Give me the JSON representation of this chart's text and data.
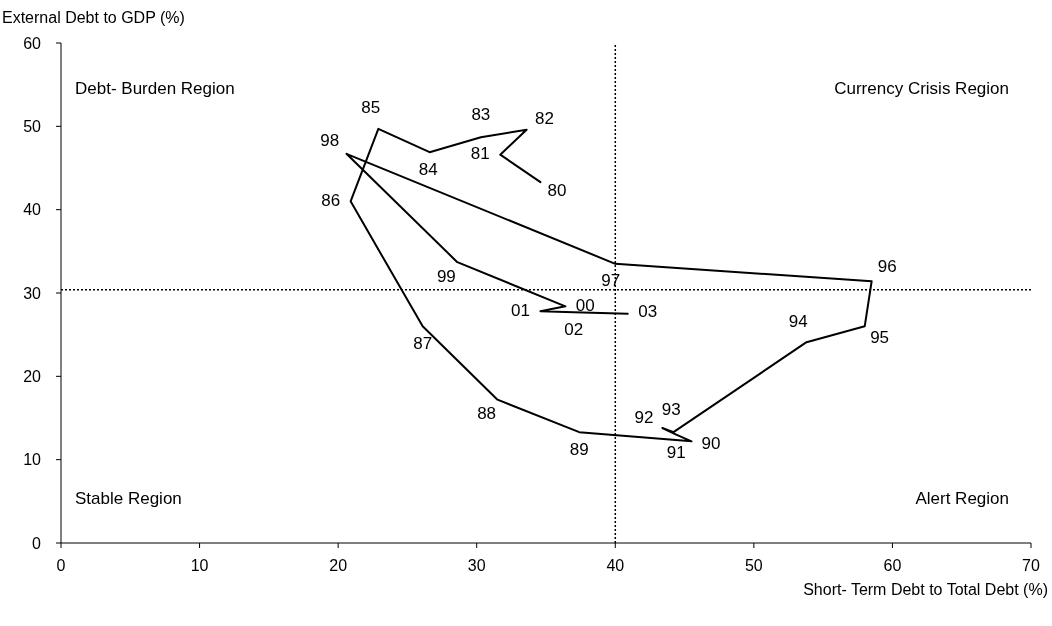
{
  "chart_data": {
    "type": "line",
    "xlabel": "Short- Term Debt to Total Debt (%)",
    "ylabel": "External Debt to GDP (%)",
    "xlim": [
      0,
      70
    ],
    "xticks": [
      0,
      10,
      20,
      30,
      40,
      50,
      60,
      70
    ],
    "ylim": [
      0,
      60
    ],
    "yticks": [
      0,
      10,
      20,
      30,
      40,
      50,
      60
    ],
    "grid": false,
    "marker": "none",
    "line_style": "solid",
    "series": [
      {
        "color": "#000000",
        "x": [
          34.6,
          31.7,
          33.6,
          30.3,
          26.6,
          22.9,
          20.9,
          26.1,
          31.5,
          37.4,
          45.5,
          44.4,
          43.4,
          44.2,
          53.8,
          58.0,
          58.5,
          40.0,
          20.6,
          28.6,
          36.4,
          34.6,
          37.0,
          40.9
        ],
        "values": [
          43.3,
          46.6,
          49.6,
          48.7,
          46.9,
          49.7,
          41.0,
          26.0,
          17.2,
          13.3,
          12.2,
          13.0,
          13.8,
          13.3,
          24.1,
          26.0,
          31.4,
          33.5,
          46.7,
          33.7,
          28.4,
          27.8,
          27.7,
          27.5
        ]
      }
    ],
    "ref_lines": [
      {
        "axis": "x",
        "value": 40,
        "line_style": "dotted"
      },
      {
        "axis": "y",
        "value": 30.4,
        "line_style": "dotted"
      }
    ],
    "annotations": [
      "Debt- Burden Region",
      "Currency Crisis Region",
      "Stable Region",
      "Alert Region",
      {
        "text": "80",
        "x": 34.6,
        "y": 43.3
      },
      {
        "text": "81",
        "x": 31.7,
        "y": 46.6
      },
      {
        "text": "82",
        "x": 33.6,
        "y": 49.6
      },
      {
        "text": "83",
        "x": 30.3,
        "y": 48.7
      },
      {
        "text": "84",
        "x": 26.6,
        "y": 46.9
      },
      {
        "text": "85",
        "x": 22.9,
        "y": 49.7
      },
      {
        "text": "86",
        "x": 20.9,
        "y": 41.0
      },
      {
        "text": "87",
        "x": 26.1,
        "y": 26.0
      },
      {
        "text": "88",
        "x": 31.5,
        "y": 17.2
      },
      {
        "text": "89",
        "x": 37.4,
        "y": 13.3
      },
      {
        "text": "90",
        "x": 45.5,
        "y": 12.2
      },
      {
        "text": "91",
        "x": 44.4,
        "y": 13.0
      },
      {
        "text": "92",
        "x": 43.4,
        "y": 13.8
      },
      {
        "text": "93",
        "x": 44.2,
        "y": 13.3
      },
      {
        "text": "94",
        "x": 53.8,
        "y": 24.1
      },
      {
        "text": "95",
        "x": 58.0,
        "y": 26.0
      },
      {
        "text": "96",
        "x": 58.5,
        "y": 31.4
      },
      {
        "text": "97",
        "x": 40.0,
        "y": 33.5
      },
      {
        "text": "98",
        "x": 20.6,
        "y": 46.7
      },
      {
        "text": "99",
        "x": 28.6,
        "y": 33.7
      },
      {
        "text": "00",
        "x": 36.4,
        "y": 28.4
      },
      {
        "text": "01",
        "x": 34.6,
        "y": 27.8
      },
      {
        "text": "02",
        "x": 37.0,
        "y": 27.7
      },
      {
        "text": "03",
        "x": 40.9,
        "y": 27.5
      }
    ]
  }
}
